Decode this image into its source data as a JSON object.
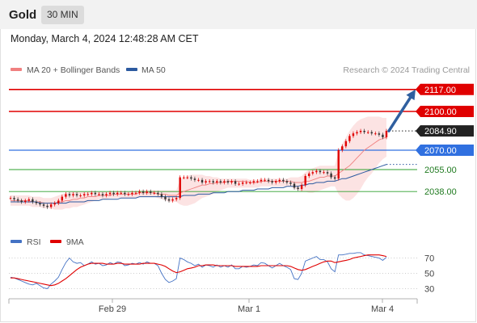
{
  "header": {
    "title": "Gold",
    "timeframe": "30 MIN"
  },
  "datetime": "Monday, March 4, 2024 12:48:28 AM CET",
  "legend": {
    "items": [
      {
        "label": "MA 20 + Bollinger Bands",
        "color": "#f08080"
      },
      {
        "label": "MA 50",
        "color": "#2c5aa0"
      }
    ],
    "credit": "Research © 2024 Trading Central"
  },
  "colors": {
    "red": "#e00000",
    "blue": "#3070e0",
    "green": "#2ea02e",
    "dark": "#222222",
    "band": "#fbdada"
  },
  "chart_data": [
    {
      "type": "line",
      "description_type": "candlestick",
      "x_tick_labels": [
        "Feb 29",
        "Mar 1",
        "Mar 4"
      ],
      "ylim": [
        2010,
        2125
      ],
      "current_price": {
        "label": "2084.90",
        "value": 2084.9
      },
      "levels": [
        {
          "label": "2117.00",
          "value": 2117,
          "kind": "resistance"
        },
        {
          "label": "2100.00",
          "value": 2100,
          "kind": "resistance"
        },
        {
          "label": "2070.00",
          "value": 2070,
          "kind": "pivot"
        },
        {
          "label": "2055.00",
          "value": 2055,
          "kind": "support"
        },
        {
          "label": "2038.00",
          "value": 2038,
          "kind": "support"
        }
      ],
      "price_series": [
        2033,
        2032,
        2031,
        2030,
        2031,
        2032,
        2030,
        2029,
        2028,
        2027,
        2026,
        2028,
        2029,
        2031,
        2034,
        2036,
        2035,
        2036,
        2035,
        2035,
        2036,
        2036,
        2037,
        2036,
        2036,
        2035,
        2036,
        2037,
        2036,
        2037,
        2037,
        2036,
        2036,
        2037,
        2037,
        2038,
        2037,
        2038,
        2037,
        2037,
        2036,
        2034,
        2032,
        2031,
        2032,
        2033,
        2049,
        2049,
        2049,
        2048,
        2047,
        2047,
        2045,
        2046,
        2046,
        2045,
        2046,
        2045,
        2046,
        2045,
        2046,
        2044,
        2044,
        2045,
        2045,
        2045,
        2046,
        2046,
        2047,
        2047,
        2046,
        2045,
        2046,
        2047,
        2046,
        2045,
        2044,
        2041,
        2040,
        2043,
        2050,
        2052,
        2053,
        2054,
        2053,
        2053,
        2052,
        2049,
        2048,
        2070,
        2073,
        2077,
        2081,
        2083,
        2084,
        2085,
        2084,
        2084,
        2083,
        2083,
        2082,
        2080,
        2085
      ],
      "ma20": [
        2031,
        2031,
        2031,
        2031,
        2031,
        2031,
        2030,
        2030,
        2030,
        2029,
        2029,
        2029,
        2029,
        2030,
        2030,
        2031,
        2031,
        2032,
        2032,
        2033,
        2033,
        2034,
        2034,
        2034,
        2035,
        2035,
        2035,
        2035,
        2036,
        2036,
        2036,
        2036,
        2036,
        2036,
        2036,
        2037,
        2037,
        2037,
        2037,
        2037,
        2036,
        2036,
        2036,
        2035,
        2035,
        2035,
        2037,
        2038,
        2039,
        2040,
        2041,
        2042,
        2043,
        2043,
        2044,
        2044,
        2045,
        2045,
        2045,
        2046,
        2046,
        2046,
        2046,
        2046,
        2046,
        2045,
        2045,
        2045,
        2046,
        2046,
        2046,
        2046,
        2046,
        2046,
        2046,
        2046,
        2046,
        2045,
        2045,
        2045,
        2046,
        2046,
        2047,
        2048,
        2049,
        2049,
        2050,
        2050,
        2050,
        2052,
        2054,
        2056,
        2058,
        2061,
        2064,
        2067,
        2070,
        2072,
        2074,
        2076,
        2078,
        2079,
        2080
      ],
      "bb_upper": [
        2035,
        2035,
        2035,
        2035,
        2035,
        2035,
        2034,
        2034,
        2034,
        2033,
        2033,
        2033,
        2034,
        2035,
        2036,
        2037,
        2037,
        2038,
        2038,
        2038,
        2038,
        2038,
        2038,
        2038,
        2038,
        2038,
        2038,
        2038,
        2038,
        2038,
        2038,
        2038,
        2038,
        2038,
        2038,
        2039,
        2039,
        2039,
        2039,
        2039,
        2039,
        2039,
        2039,
        2039,
        2039,
        2039,
        2047,
        2049,
        2050,
        2051,
        2051,
        2051,
        2051,
        2050,
        2050,
        2049,
        2049,
        2048,
        2048,
        2048,
        2048,
        2048,
        2048,
        2048,
        2048,
        2047,
        2047,
        2047,
        2048,
        2048,
        2048,
        2048,
        2048,
        2048,
        2048,
        2048,
        2049,
        2049,
        2049,
        2050,
        2053,
        2055,
        2056,
        2057,
        2058,
        2058,
        2058,
        2058,
        2058,
        2069,
        2075,
        2080,
        2085,
        2089,
        2092,
        2094,
        2095,
        2096,
        2096,
        2096,
        2096,
        2095,
        2095
      ],
      "bb_lower": [
        2027,
        2027,
        2027,
        2027,
        2027,
        2027,
        2026,
        2026,
        2026,
        2025,
        2025,
        2025,
        2024,
        2024,
        2024,
        2025,
        2025,
        2026,
        2026,
        2027,
        2028,
        2029,
        2030,
        2031,
        2032,
        2032,
        2032,
        2033,
        2033,
        2033,
        2033,
        2033,
        2033,
        2033,
        2033,
        2034,
        2034,
        2034,
        2034,
        2034,
        2033,
        2032,
        2031,
        2030,
        2030,
        2030,
        2028,
        2027,
        2027,
        2028,
        2029,
        2031,
        2033,
        2034,
        2035,
        2036,
        2038,
        2039,
        2040,
        2041,
        2041,
        2041,
        2041,
        2041,
        2041,
        2041,
        2041,
        2041,
        2042,
        2042,
        2042,
        2042,
        2042,
        2042,
        2042,
        2042,
        2042,
        2040,
        2039,
        2038,
        2038,
        2037,
        2037,
        2038,
        2039,
        2040,
        2041,
        2042,
        2042,
        2036,
        2033,
        2031,
        2031,
        2033,
        2036,
        2040,
        2045,
        2049,
        2052,
        2056,
        2060,
        2063,
        2065
      ],
      "ma50": [
        2030,
        2030,
        2030,
        2030,
        2030,
        2030,
        2030,
        2030,
        2029,
        2029,
        2029,
        2029,
        2029,
        2029,
        2029,
        2029,
        2030,
        2030,
        2030,
        2030,
        2030,
        2031,
        2031,
        2031,
        2031,
        2032,
        2032,
        2032,
        2032,
        2032,
        2033,
        2033,
        2033,
        2033,
        2033,
        2034,
        2034,
        2034,
        2034,
        2034,
        2034,
        2034,
        2034,
        2034,
        2034,
        2034,
        2034,
        2035,
        2035,
        2035,
        2035,
        2036,
        2036,
        2036,
        2036,
        2037,
        2037,
        2037,
        2037,
        2038,
        2038,
        2038,
        2038,
        2039,
        2039,
        2039,
        2039,
        2040,
        2040,
        2040,
        2040,
        2041,
        2041,
        2041,
        2041,
        2042,
        2042,
        2042,
        2042,
        2043,
        2043,
        2044,
        2044,
        2045,
        2045,
        2045,
        2046,
        2046,
        2046,
        2047,
        2048,
        2048,
        2049,
        2050,
        2051,
        2052,
        2053,
        2054,
        2055,
        2056,
        2057,
        2058,
        2059
      ],
      "projection": {
        "from_value": 2084.9,
        "to_value": 2117
      }
    },
    {
      "type": "line",
      "legend": [
        {
          "label": "RSI",
          "color": "#4472c4"
        },
        {
          "label": "9MA",
          "color": "#e00000"
        }
      ],
      "ylim": [
        20,
        80
      ],
      "y_ticks": [
        {
          "label": "70",
          "value": 70
        },
        {
          "label": "50",
          "value": 50
        },
        {
          "label": "30",
          "value": 30
        }
      ],
      "rsi": [
        45,
        44,
        42,
        40,
        38,
        36,
        35,
        37,
        34,
        31,
        30,
        36,
        40,
        45,
        55,
        64,
        70,
        65,
        63,
        64,
        60,
        62,
        65,
        62,
        63,
        60,
        61,
        64,
        62,
        65,
        64,
        60,
        61,
        63,
        62,
        64,
        62,
        65,
        63,
        63,
        60,
        50,
        42,
        38,
        40,
        43,
        70,
        68,
        65,
        63,
        60,
        62,
        58,
        61,
        60,
        58,
        61,
        58,
        60,
        58,
        61,
        56,
        56,
        59,
        58,
        59,
        61,
        60,
        64,
        63,
        60,
        57,
        60,
        63,
        60,
        58,
        55,
        43,
        42,
        50,
        66,
        68,
        70,
        72,
        68,
        68,
        65,
        56,
        52,
        74,
        74,
        75,
        76,
        76,
        77,
        77,
        74,
        73,
        72,
        71,
        70,
        67,
        71
      ],
      "ma9": [
        44,
        44,
        43,
        42,
        41,
        40,
        39,
        38,
        37,
        36,
        35,
        34,
        35,
        37,
        40,
        43,
        47,
        51,
        55,
        58,
        60,
        62,
        63,
        63,
        63,
        63,
        62,
        62,
        62,
        63,
        63,
        62,
        62,
        62,
        62,
        62,
        63,
        63,
        63,
        63,
        62,
        61,
        59,
        56,
        53,
        51,
        52,
        54,
        56,
        57,
        58,
        60,
        60,
        61,
        61,
        61,
        60,
        60,
        60,
        60,
        60,
        59,
        59,
        59,
        59,
        59,
        59,
        59,
        60,
        60,
        60,
        60,
        60,
        60,
        60,
        60,
        59,
        57,
        55,
        54,
        55,
        57,
        59,
        61,
        63,
        65,
        66,
        66,
        64,
        65,
        66,
        67,
        68,
        70,
        71,
        72,
        73,
        74,
        74,
        74,
        74,
        73,
        72
      ]
    }
  ]
}
